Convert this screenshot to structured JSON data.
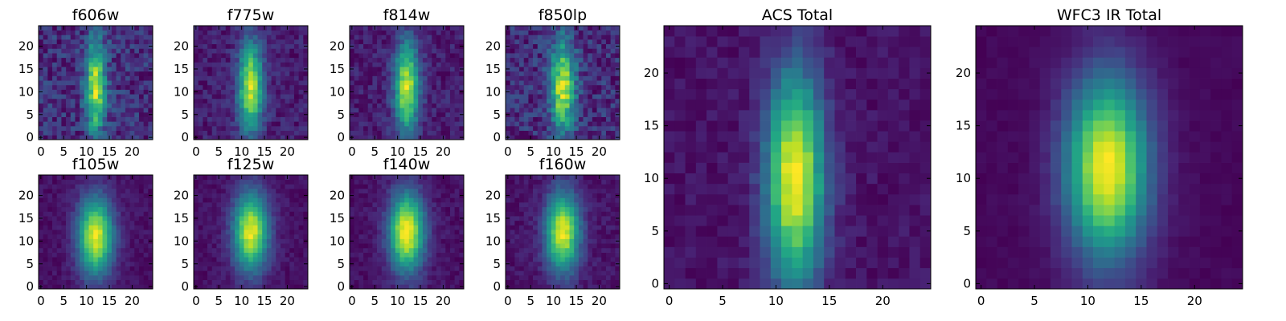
{
  "chart_data": [
    {
      "type": "heatmap",
      "title": "f606w",
      "xticks": [
        0,
        5,
        10,
        15,
        20
      ],
      "yticks": [
        0,
        5,
        10,
        15,
        20
      ],
      "xlim": [
        -0.5,
        24.5
      ],
      "ylim": [
        -0.5,
        24.5
      ],
      "grid": false,
      "colormap": "viridis",
      "grid_size": 25,
      "source": {
        "cx": 12,
        "cy": 11,
        "sx": 1.6,
        "sy": 7.0,
        "ydrift": 0.0,
        "noise": 0.18,
        "background": 0.18,
        "seed": 3
      }
    },
    {
      "type": "heatmap",
      "title": "f775w",
      "xticks": [
        0,
        5,
        10,
        15,
        20
      ],
      "yticks": [
        0,
        5,
        10,
        15,
        20
      ],
      "xlim": [
        -0.5,
        24.5
      ],
      "ylim": [
        -0.5,
        24.5
      ],
      "grid": false,
      "colormap": "viridis",
      "grid_size": 25,
      "source": {
        "cx": 12,
        "cy": 11,
        "sx": 1.9,
        "sy": 7.0,
        "ydrift": 0.0,
        "noise": 0.1,
        "background": 0.14,
        "seed": 7
      }
    },
    {
      "type": "heatmap",
      "title": "f814w",
      "xticks": [
        0,
        5,
        10,
        15,
        20
      ],
      "yticks": [
        0,
        5,
        10,
        15,
        20
      ],
      "xlim": [
        -0.5,
        24.5
      ],
      "ylim": [
        -0.5,
        24.5
      ],
      "grid": false,
      "colormap": "viridis",
      "grid_size": 25,
      "source": {
        "cx": 12,
        "cy": 11,
        "sx": 1.9,
        "sy": 7.0,
        "ydrift": 0.0,
        "noise": 0.1,
        "background": 0.14,
        "seed": 11
      }
    },
    {
      "type": "heatmap",
      "title": "f850lp",
      "xticks": [
        0,
        5,
        10,
        15,
        20
      ],
      "yticks": [
        0,
        5,
        10,
        15,
        20
      ],
      "xlim": [
        -0.5,
        24.5
      ],
      "ylim": [
        -0.5,
        24.5
      ],
      "grid": false,
      "colormap": "viridis",
      "grid_size": 25,
      "source": {
        "cx": 12,
        "cy": 11,
        "sx": 1.9,
        "sy": 7.0,
        "ydrift": 0.0,
        "noise": 0.17,
        "background": 0.17,
        "seed": 13
      }
    },
    {
      "type": "heatmap",
      "title": "f105w",
      "xticks": [
        0,
        5,
        10,
        15,
        20
      ],
      "yticks": [
        0,
        5,
        10,
        15,
        20
      ],
      "xlim": [
        -0.5,
        24.5
      ],
      "ylim": [
        -0.5,
        24.5
      ],
      "grid": false,
      "colormap": "viridis",
      "grid_size": 25,
      "source": {
        "cx": 12,
        "cy": 11,
        "sx": 2.7,
        "sy": 6.0,
        "ydrift": 0.0,
        "noise": 0.05,
        "background": 0.1,
        "seed": 17
      }
    },
    {
      "type": "heatmap",
      "title": "f125w",
      "xticks": [
        0,
        5,
        10,
        15,
        20
      ],
      "yticks": [
        0,
        5,
        10,
        15,
        20
      ],
      "xlim": [
        -0.5,
        24.5
      ],
      "ylim": [
        -0.5,
        24.5
      ],
      "grid": false,
      "colormap": "viridis",
      "grid_size": 25,
      "source": {
        "cx": 12,
        "cy": 12,
        "sx": 2.7,
        "sy": 6.0,
        "ydrift": 0.0,
        "noise": 0.05,
        "background": 0.1,
        "seed": 19
      }
    },
    {
      "type": "heatmap",
      "title": "f140w",
      "xticks": [
        0,
        5,
        10,
        15,
        20
      ],
      "yticks": [
        0,
        5,
        10,
        15,
        20
      ],
      "xlim": [
        -0.5,
        24.5
      ],
      "ylim": [
        -0.5,
        24.5
      ],
      "grid": false,
      "colormap": "viridis",
      "grid_size": 25,
      "source": {
        "cx": 12,
        "cy": 12,
        "sx": 2.7,
        "sy": 6.0,
        "ydrift": 0.0,
        "noise": 0.05,
        "background": 0.1,
        "seed": 23
      }
    },
    {
      "type": "heatmap",
      "title": "f160w",
      "xticks": [
        0,
        5,
        10,
        15,
        20
      ],
      "yticks": [
        0,
        5,
        10,
        15,
        20
      ],
      "xlim": [
        -0.5,
        24.5
      ],
      "ylim": [
        -0.5,
        24.5
      ],
      "grid": false,
      "colormap": "viridis",
      "grid_size": 25,
      "source": {
        "cx": 12,
        "cy": 12,
        "sx": 2.6,
        "sy": 6.0,
        "ydrift": 0.0,
        "noise": 0.06,
        "background": 0.08,
        "seed": 29
      }
    },
    {
      "type": "heatmap",
      "title": "ACS Total",
      "xticks": [
        0,
        5,
        10,
        15,
        20
      ],
      "yticks": [
        0,
        5,
        10,
        15,
        20
      ],
      "xlim": [
        -0.5,
        24.5
      ],
      "ylim": [
        -0.5,
        24.5
      ],
      "grid": false,
      "colormap": "viridis",
      "grid_size": 25,
      "source": {
        "cx": 11.8,
        "cy": 10,
        "sx": 1.9,
        "sy": 7.0,
        "ydrift": 0.04,
        "noise": 0.05,
        "background": 0.14,
        "seed": 31
      }
    },
    {
      "type": "heatmap",
      "title": "WFC3 IR Total",
      "xticks": [
        0,
        5,
        10,
        15,
        20
      ],
      "yticks": [
        0,
        5,
        10,
        15,
        20
      ],
      "xlim": [
        -0.5,
        24.5
      ],
      "ylim": [
        -0.5,
        24.5
      ],
      "grid": false,
      "colormap": "viridis",
      "grid_size": 25,
      "source": {
        "cx": 11.8,
        "cy": 11,
        "sx": 2.7,
        "sy": 6.0,
        "ydrift": 0.02,
        "noise": 0.02,
        "background": 0.08,
        "seed": 37
      }
    }
  ]
}
